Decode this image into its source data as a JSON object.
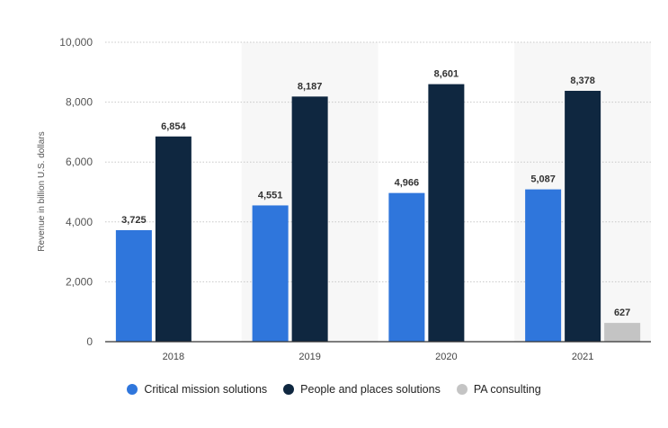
{
  "chart_data": {
    "type": "bar",
    "title": "",
    "xlabel": "",
    "ylabel": "Revenue in billion U.S. dollars",
    "categories": [
      "2018",
      "2019",
      "2020",
      "2021"
    ],
    "ylim": [
      0,
      10000
    ],
    "yticks": [
      0,
      2000,
      4000,
      6000,
      8000,
      10000
    ],
    "ytick_labels": [
      "0",
      "2,000",
      "4,000",
      "6,000",
      "8,000",
      "10,000"
    ],
    "grid": true,
    "legend_position": "bottom",
    "series": [
      {
        "name": "Critical mission solutions",
        "color": "#2f76dc",
        "values": [
          3725,
          4551,
          4966,
          5087
        ],
        "labels": [
          "3,725",
          "4,551",
          "4,966",
          "5,087"
        ]
      },
      {
        "name": "People and places solutions",
        "color": "#0f2740",
        "values": [
          6854,
          8187,
          8601,
          8378
        ],
        "labels": [
          "6,854",
          "8,187",
          "8,601",
          "8,378"
        ]
      },
      {
        "name": "PA consulting",
        "color": "#c4c4c4",
        "values": [
          null,
          null,
          null,
          627
        ],
        "labels": [
          null,
          null,
          null,
          "627"
        ]
      }
    ]
  }
}
